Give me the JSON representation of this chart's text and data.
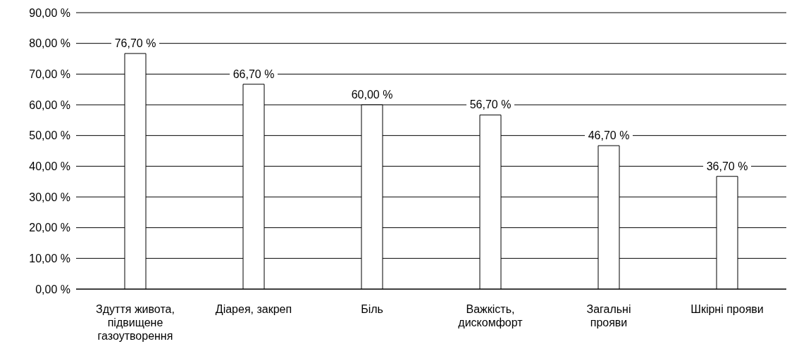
{
  "chart_data": {
    "type": "bar",
    "categories": [
      "Здуття живота, підвищене газоутворення",
      "Діарея, закреп",
      "Біль",
      "Важкість, дискомфорт",
      "Загальні прояви",
      "Шкірні прояви"
    ],
    "values": [
      76.7,
      66.7,
      60.0,
      56.7,
      46.7,
      36.7
    ],
    "value_labels": [
      "76,70 %",
      "66,70 %",
      "60,00 %",
      "56,70 %",
      "46,70 %",
      "36,70 %"
    ],
    "color": "#ffffff",
    "ylim": [
      0,
      90
    ],
    "yticks": [
      {
        "value": 0,
        "label": "0,00 %"
      },
      {
        "value": 10,
        "label": "10,00 %"
      },
      {
        "value": 20,
        "label": "20,00 %"
      },
      {
        "value": 30,
        "label": "30,00 %"
      },
      {
        "value": 40,
        "label": "40,00 %"
      },
      {
        "value": 50,
        "label": "50,00 %"
      },
      {
        "value": 60,
        "label": "60,00 %"
      },
      {
        "value": 70,
        "label": "70,00 %"
      },
      {
        "value": 80,
        "label": "80,00 %"
      },
      {
        "value": 90,
        "label": "90,00 %"
      }
    ],
    "grid": "y",
    "legend": false
  }
}
